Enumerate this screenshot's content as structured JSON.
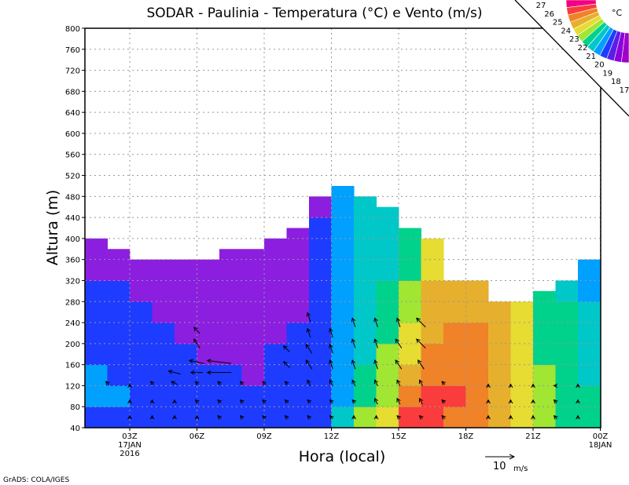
{
  "chart_data": {
    "type": "heatmap",
    "title": "SODAR - Paulinia - Temperatura (°C) e Vento (m/s)",
    "xlabel": "Hora (local)",
    "ylabel": "Altura (m)",
    "ylim": [
      40,
      800
    ],
    "yticks": [
      "40",
      "80",
      "120",
      "160",
      "200",
      "240",
      "280",
      "320",
      "360",
      "400",
      "440",
      "480",
      "520",
      "560",
      "600",
      "640",
      "680",
      "720",
      "760",
      "800"
    ],
    "xlim_hours": [
      1,
      24
    ],
    "xticks": [
      {
        "hour": 3,
        "label": "03Z",
        "sub1": "17JAN",
        "sub2": "2016"
      },
      {
        "hour": 6,
        "label": "06Z"
      },
      {
        "hour": 9,
        "label": "09Z"
      },
      {
        "hour": 12,
        "label": "12Z"
      },
      {
        "hour": 15,
        "label": "15Z"
      },
      {
        "hour": 18,
        "label": "18Z"
      },
      {
        "hour": 21,
        "label": "21Z"
      },
      {
        "hour": 24,
        "label": "00Z",
        "sub1": "18JAN"
      }
    ],
    "grid": true,
    "legend": {
      "unit": "°C",
      "labels": [
        "27",
        "26",
        "25",
        "24",
        "23",
        "22",
        "21",
        "20",
        "19",
        "18",
        "17"
      ],
      "colors": [
        "#f00082",
        "#fa3c3c",
        "#f08228",
        "#e6af2d",
        "#e6dc32",
        "#a0e632",
        "#00d28c",
        "#00c8c8",
        "#00a0ff",
        "#1e3cff",
        "#5a1ee6",
        "#8c00dc",
        "#a000c8"
      ],
      "placement": "top-right"
    },
    "class_colors": [
      "#8c1ee0",
      "#1e3cff",
      "#00a0ff",
      "#00c8c8",
      "#00d28c",
      "#a0e632",
      "#e6dc32",
      "#e6af2d",
      "#f08228",
      "#fa3c3c"
    ],
    "class_temps": [
      "<19",
      "19",
      "20",
      "21",
      "22",
      "23",
      "24",
      "25",
      "26",
      "27"
    ],
    "columns": [
      {
        "top": 400,
        "cls": [
          1,
          2,
          2,
          1,
          1,
          1,
          1,
          0,
          0
        ]
      },
      {
        "top": 380,
        "cls": [
          1,
          2,
          1,
          1,
          1,
          1,
          1,
          0,
          0
        ]
      },
      {
        "top": 360,
        "cls": [
          1,
          1,
          1,
          1,
          1,
          1,
          0,
          0
        ]
      },
      {
        "top": 360,
        "cls": [
          1,
          1,
          1,
          1,
          1,
          0,
          0,
          0
        ]
      },
      {
        "top": 360,
        "cls": [
          1,
          1,
          1,
          1,
          0,
          0,
          0,
          0
        ]
      },
      {
        "top": 360,
        "cls": [
          1,
          1,
          1,
          0,
          0,
          0,
          0,
          0
        ]
      },
      {
        "top": 380,
        "cls": [
          1,
          1,
          1,
          0,
          0,
          0,
          0,
          0,
          0
        ]
      },
      {
        "top": 380,
        "cls": [
          1,
          1,
          0,
          0,
          0,
          0,
          0,
          0,
          0
        ]
      },
      {
        "top": 400,
        "cls": [
          1,
          1,
          1,
          1,
          0,
          0,
          0,
          0,
          0
        ]
      },
      {
        "top": 420,
        "cls": [
          1,
          1,
          1,
          1,
          1,
          0,
          0,
          0,
          0,
          0
        ]
      },
      {
        "top": 480,
        "cls": [
          1,
          1,
          1,
          1,
          1,
          1,
          1,
          1,
          1,
          1,
          0
        ]
      },
      {
        "top": 500,
        "cls": [
          3,
          2,
          2,
          2,
          2,
          2,
          2,
          2,
          2,
          2,
          2,
          2
        ]
      },
      {
        "top": 480,
        "cls": [
          5,
          4,
          4,
          3,
          3,
          3,
          3,
          3,
          3,
          3,
          3
        ]
      },
      {
        "top": 460,
        "cls": [
          6,
          5,
          5,
          5,
          4,
          4,
          4,
          3,
          3,
          3,
          3
        ]
      },
      {
        "top": 420,
        "cls": [
          9,
          8,
          7,
          6,
          6,
          5,
          5,
          4,
          4,
          4
        ]
      },
      {
        "top": 400,
        "cls": [
          9,
          9,
          8,
          8,
          7,
          7,
          7,
          6,
          6
        ]
      },
      {
        "top": 320,
        "cls": [
          8,
          9,
          8,
          8,
          8,
          7,
          7
        ]
      },
      {
        "top": 320,
        "cls": [
          8,
          8,
          8,
          8,
          8,
          7,
          7
        ]
      },
      {
        "top": 280,
        "cls": [
          7,
          7,
          7,
          7,
          7,
          7
        ]
      },
      {
        "top": 280,
        "cls": [
          6,
          6,
          6,
          6,
          6,
          6
        ]
      },
      {
        "top": 300,
        "cls": [
          5,
          5,
          5,
          4,
          4,
          4,
          4
        ]
      },
      {
        "top": 320,
        "cls": [
          4,
          4,
          4,
          4,
          4,
          4,
          3
        ]
      },
      {
        "top": 360,
        "cls": [
          4,
          4,
          3,
          3,
          3,
          3,
          2,
          2
        ]
      }
    ],
    "wind": [
      [
        3,
        60,
        0,
        1
      ],
      [
        3,
        90,
        0,
        1
      ],
      [
        3,
        120,
        0,
        1
      ],
      [
        2,
        125,
        -1,
        1
      ],
      [
        4,
        60,
        0,
        1
      ],
      [
        4,
        90,
        0,
        1
      ],
      [
        4,
        125,
        -1,
        1
      ],
      [
        5,
        60,
        0,
        1
      ],
      [
        5,
        90,
        0,
        1
      ],
      [
        5,
        125,
        -2,
        1
      ],
      [
        5,
        145,
        -4,
        1
      ],
      [
        6,
        60,
        0,
        1
      ],
      [
        6,
        90,
        -1,
        1
      ],
      [
        6,
        125,
        -1,
        1
      ],
      [
        6,
        145,
        -4,
        0
      ],
      [
        6,
        165,
        -5,
        1
      ],
      [
        6,
        200,
        -2,
        3
      ],
      [
        6,
        225,
        -2,
        2
      ],
      [
        7,
        60,
        -1,
        1
      ],
      [
        7,
        90,
        -1,
        1
      ],
      [
        7,
        125,
        -1,
        1
      ],
      [
        7,
        145,
        -8,
        0
      ],
      [
        7,
        165,
        -8,
        1
      ],
      [
        8,
        60,
        -1,
        1
      ],
      [
        8,
        90,
        -1,
        1
      ],
      [
        8,
        125,
        -1,
        1
      ],
      [
        9,
        60,
        -1,
        1
      ],
      [
        9,
        90,
        -1,
        1
      ],
      [
        9,
        125,
        -1,
        1
      ],
      [
        10,
        60,
        -1,
        1
      ],
      [
        10,
        90,
        -1,
        1
      ],
      [
        10,
        125,
        -1,
        1
      ],
      [
        10,
        160,
        -2,
        2
      ],
      [
        10,
        190,
        -2,
        2
      ],
      [
        11,
        60,
        -1,
        1
      ],
      [
        11,
        90,
        -1,
        1
      ],
      [
        11,
        125,
        -1,
        2
      ],
      [
        11,
        160,
        -2,
        3
      ],
      [
        11,
        190,
        -2,
        3
      ],
      [
        11,
        220,
        -1,
        3
      ],
      [
        11,
        250,
        -1,
        3
      ],
      [
        12,
        60,
        -1,
        1
      ],
      [
        12,
        90,
        -1,
        1
      ],
      [
        12,
        125,
        -1,
        2
      ],
      [
        12,
        160,
        -1,
        3
      ],
      [
        12,
        190,
        -1,
        3
      ],
      [
        12,
        220,
        -1,
        3
      ],
      [
        13,
        60,
        0,
        1
      ],
      [
        13,
        90,
        -1,
        1
      ],
      [
        13,
        125,
        -1,
        2
      ],
      [
        13,
        160,
        -1,
        3
      ],
      [
        13,
        200,
        -1,
        3
      ],
      [
        13,
        240,
        -1,
        3
      ],
      [
        14,
        60,
        0,
        1
      ],
      [
        14,
        90,
        -1,
        2
      ],
      [
        14,
        125,
        -1,
        2
      ],
      [
        14,
        160,
        -1,
        3
      ],
      [
        14,
        200,
        -1,
        3
      ],
      [
        14,
        240,
        -1,
        3
      ],
      [
        15,
        60,
        -1,
        1
      ],
      [
        15,
        90,
        -1,
        2
      ],
      [
        15,
        125,
        -1,
        2
      ],
      [
        15,
        160,
        -2,
        3
      ],
      [
        15,
        200,
        -2,
        3
      ],
      [
        15,
        240,
        -1,
        3
      ],
      [
        16,
        60,
        -1,
        1
      ],
      [
        16,
        90,
        -1,
        2
      ],
      [
        16,
        125,
        -1,
        2
      ],
      [
        16,
        160,
        -2,
        3
      ],
      [
        16,
        200,
        -3,
        3
      ],
      [
        16,
        240,
        -3,
        3
      ],
      [
        17,
        60,
        -1,
        1
      ],
      [
        17,
        90,
        -1,
        1
      ],
      [
        17,
        125,
        -1,
        1
      ],
      [
        19,
        60,
        0,
        1
      ],
      [
        19,
        90,
        0,
        1
      ],
      [
        19,
        120,
        0,
        1
      ],
      [
        20,
        60,
        0,
        1
      ],
      [
        20,
        90,
        0,
        1
      ],
      [
        20,
        120,
        0,
        1
      ],
      [
        21,
        60,
        0,
        1
      ],
      [
        21,
        90,
        0,
        1
      ],
      [
        21,
        120,
        0,
        1
      ],
      [
        22,
        60,
        -1,
        1
      ],
      [
        22,
        90,
        -1,
        1
      ],
      [
        22,
        120,
        -1,
        0
      ],
      [
        23,
        60,
        0,
        1
      ],
      [
        23,
        90,
        0,
        1
      ],
      [
        23,
        120,
        0,
        1
      ]
    ],
    "ref_vector": {
      "value": "10",
      "unit": "m/s"
    }
  },
  "footer": "GrADS: COLA/IGES"
}
